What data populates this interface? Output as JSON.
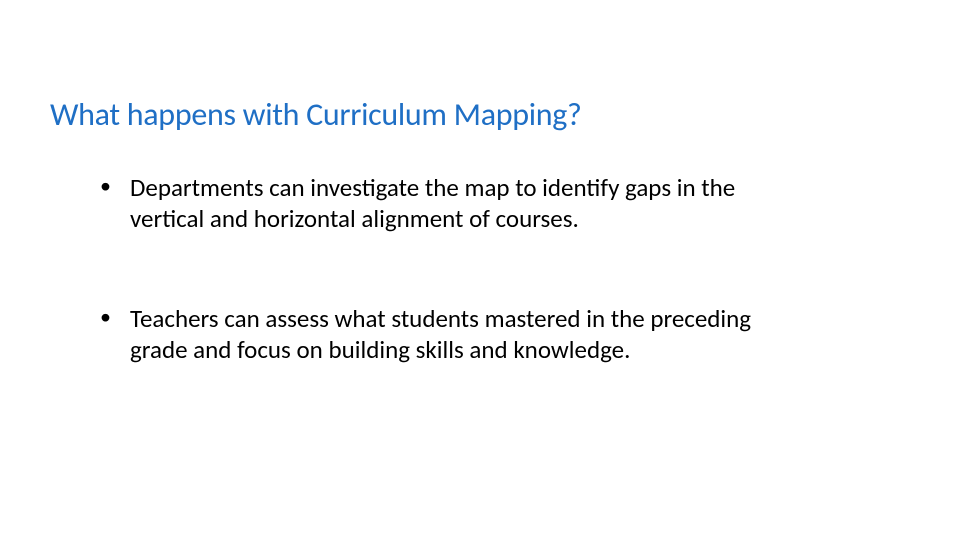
{
  "slide": {
    "title": "What happens with Curriculum Mapping?",
    "title_color": "#1f6fc5",
    "title_fontsize": 32,
    "background_color": "#ffffff",
    "bullets": [
      {
        "text": "Departments can investigate the map to identify gaps in the vertical and horizontal alignment of courses."
      },
      {
        "text": "Teachers can assess what students mastered in the preceding grade and focus on building skills and knowledge."
      }
    ],
    "bullet_color": "#000000",
    "bullet_fontsize": 25
  }
}
